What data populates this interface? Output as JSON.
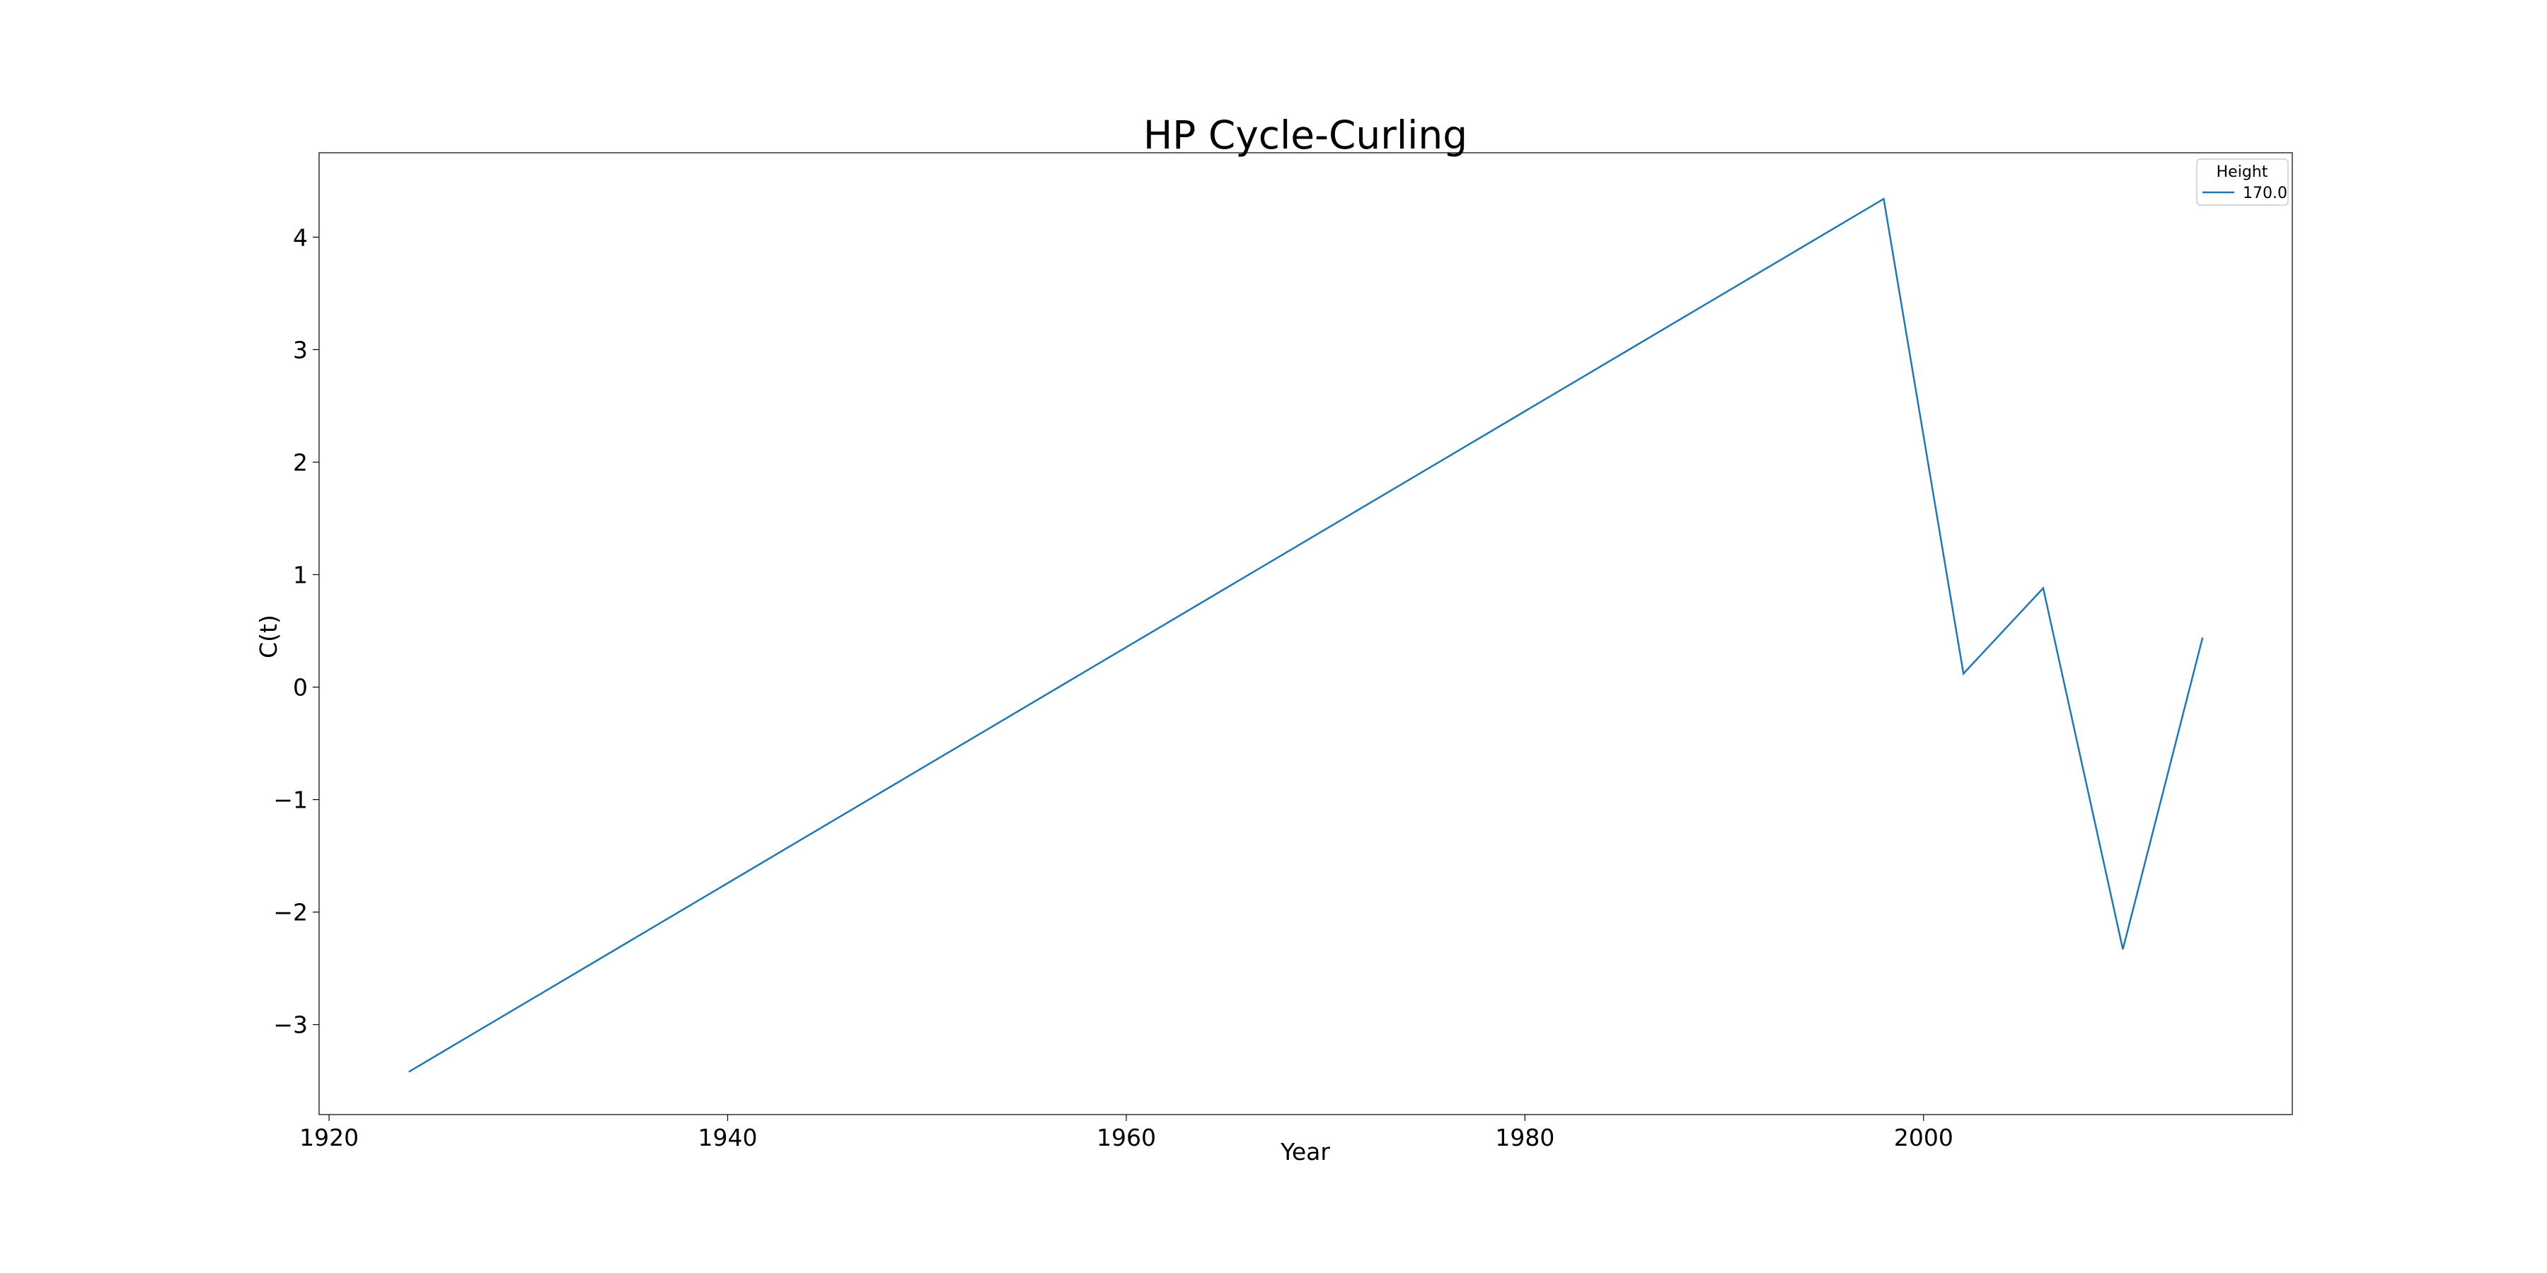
{
  "chart_data": {
    "type": "line",
    "title": "HP Cycle-Curling",
    "xlabel": "Year",
    "ylabel": "C(t)",
    "xlim": [
      1919.5,
      2018.5
    ],
    "ylim": [
      -3.8,
      4.75
    ],
    "xticks": [
      1920,
      1940,
      1960,
      1980,
      2000
    ],
    "xtick_labels": [
      "1920",
      "1940",
      "1960",
      "1980",
      "2000"
    ],
    "yticks": [
      -3,
      -2,
      -1,
      0,
      1,
      2,
      3,
      4
    ],
    "ytick_labels": [
      "−3",
      "−2",
      "−1",
      "0",
      "1",
      "2",
      "3",
      "4"
    ],
    "grid": false,
    "legend": {
      "title": "Height",
      "placement": "top-right",
      "entries": [
        "170.0"
      ]
    },
    "series": [
      {
        "name": "170.0",
        "color": "#1f77b4",
        "x": [
          1924,
          1998,
          2002,
          2006,
          2010,
          2014
        ],
        "y": [
          -3.42,
          4.34,
          0.12,
          0.88,
          -2.33,
          0.44
        ]
      }
    ]
  }
}
